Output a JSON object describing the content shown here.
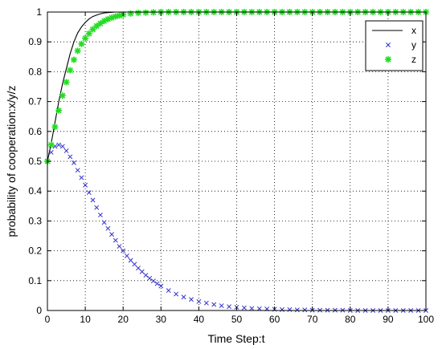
{
  "chart_data": {
    "type": "line",
    "xlabel": "Time Step:t",
    "ylabel": "probability of cooperation:x/y/z",
    "xlim": [
      0,
      100
    ],
    "ylim": [
      0,
      1
    ],
    "x_ticks": [
      "0",
      "10",
      "20",
      "30",
      "40",
      "50",
      "60",
      "70",
      "80",
      "90",
      "100"
    ],
    "y_ticks": [
      "0",
      "0.1",
      "0.2",
      "0.3",
      "0.4",
      "0.5",
      "0.6",
      "0.7",
      "0.8",
      "0.9",
      "1"
    ],
    "grid": true,
    "legend_position": "top-right",
    "series": [
      {
        "name": "x",
        "style": "solid-line",
        "color": "#000000",
        "x": [
          0,
          1,
          2,
          3,
          4,
          5,
          6,
          7,
          8,
          9,
          10,
          11,
          12,
          13,
          14,
          15,
          16,
          17,
          18,
          20,
          25,
          30,
          40,
          50,
          60,
          70,
          80,
          90,
          100
        ],
        "y": [
          0.5,
          0.56,
          0.63,
          0.7,
          0.76,
          0.81,
          0.86,
          0.9,
          0.93,
          0.95,
          0.965,
          0.977,
          0.985,
          0.99,
          0.994,
          0.997,
          0.998,
          0.999,
          1.0,
          1.0,
          1.0,
          1.0,
          1.0,
          1.0,
          1.0,
          1.0,
          1.0,
          1.0,
          1.0
        ]
      },
      {
        "name": "y",
        "style": "x-marker",
        "color": "#3333cc",
        "x": [
          0,
          1,
          2,
          3,
          4,
          5,
          6,
          7,
          8,
          9,
          10,
          11,
          12,
          13,
          14,
          15,
          16,
          17,
          18,
          19,
          20,
          21,
          22,
          23,
          24,
          25,
          26,
          27,
          28,
          29,
          30,
          32,
          34,
          36,
          38,
          40,
          42,
          44,
          46,
          48,
          50,
          52,
          54,
          56,
          58,
          60,
          62,
          64,
          66,
          68,
          70,
          72,
          74,
          76,
          78,
          80,
          82,
          84,
          86,
          88,
          90,
          92,
          94,
          96,
          98,
          100
        ],
        "y": [
          0.5,
          0.53,
          0.55,
          0.555,
          0.55,
          0.535,
          0.515,
          0.495,
          0.47,
          0.445,
          0.42,
          0.395,
          0.37,
          0.345,
          0.32,
          0.295,
          0.275,
          0.255,
          0.235,
          0.215,
          0.2,
          0.183,
          0.168,
          0.155,
          0.142,
          0.13,
          0.118,
          0.108,
          0.099,
          0.09,
          0.082,
          0.067,
          0.055,
          0.045,
          0.037,
          0.03,
          0.025,
          0.02,
          0.016,
          0.013,
          0.011,
          0.009,
          0.007,
          0.006,
          0.005,
          0.004,
          0.003,
          0.003,
          0.002,
          0.002,
          0.001,
          0.001,
          0.001,
          0.001,
          0.001,
          0.0,
          0.0,
          0.0,
          0.0,
          0.0,
          0.0,
          0.0,
          0.0,
          0.0,
          0.0,
          0.0
        ]
      },
      {
        "name": "z",
        "style": "star-marker",
        "color": "#22dd22",
        "x": [
          0,
          1,
          2,
          3,
          4,
          5,
          6,
          7,
          8,
          9,
          10,
          11,
          12,
          13,
          14,
          15,
          16,
          17,
          18,
          19,
          20,
          22,
          24,
          26,
          28,
          30,
          32,
          34,
          36,
          38,
          40,
          42,
          44,
          46,
          48,
          50,
          52,
          54,
          56,
          58,
          60,
          62,
          64,
          66,
          68,
          70,
          72,
          74,
          76,
          78,
          80,
          82,
          84,
          86,
          88,
          90,
          92,
          94,
          96,
          98,
          100
        ],
        "y": [
          0.5,
          0.555,
          0.615,
          0.67,
          0.72,
          0.765,
          0.805,
          0.84,
          0.87,
          0.893,
          0.912,
          0.928,
          0.942,
          0.953,
          0.962,
          0.97,
          0.976,
          0.981,
          0.985,
          0.988,
          0.991,
          0.995,
          0.997,
          0.998,
          0.999,
          1.0,
          1.0,
          1.0,
          1.0,
          1.0,
          1.0,
          1.0,
          1.0,
          1.0,
          1.0,
          1.0,
          1.0,
          1.0,
          1.0,
          1.0,
          1.0,
          1.0,
          1.0,
          1.0,
          1.0,
          1.0,
          1.0,
          1.0,
          1.0,
          1.0,
          1.0,
          1.0,
          1.0,
          1.0,
          1.0,
          1.0,
          1.0,
          1.0,
          1.0,
          1.0,
          1.0
        ]
      }
    ]
  }
}
